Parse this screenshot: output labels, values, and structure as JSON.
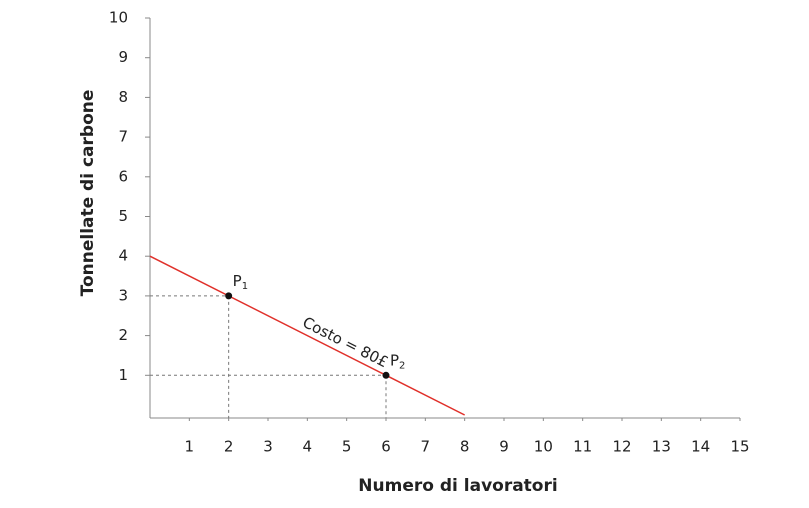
{
  "chart_data": {
    "type": "line",
    "x_label": "Numero di lavoratori",
    "y_label": "Tonnellate di carbone",
    "series": [
      {
        "name": "Costo = 80£",
        "color": "#e0302a",
        "x": [
          0,
          8
        ],
        "values": [
          4,
          0
        ]
      }
    ],
    "points": [
      {
        "label": "P",
        "subscript": "1",
        "x": 2,
        "y": 3
      },
      {
        "label": "P",
        "subscript": "2",
        "x": 6,
        "y": 1
      }
    ],
    "xlim": [
      0,
      15
    ],
    "ylim": [
      0,
      10
    ],
    "xticks": [
      1,
      2,
      3,
      4,
      5,
      6,
      7,
      8,
      9,
      10,
      11,
      12,
      13,
      14,
      15
    ],
    "yticks": [
      1,
      2,
      3,
      4,
      5,
      6,
      7,
      8,
      9,
      10
    ]
  }
}
